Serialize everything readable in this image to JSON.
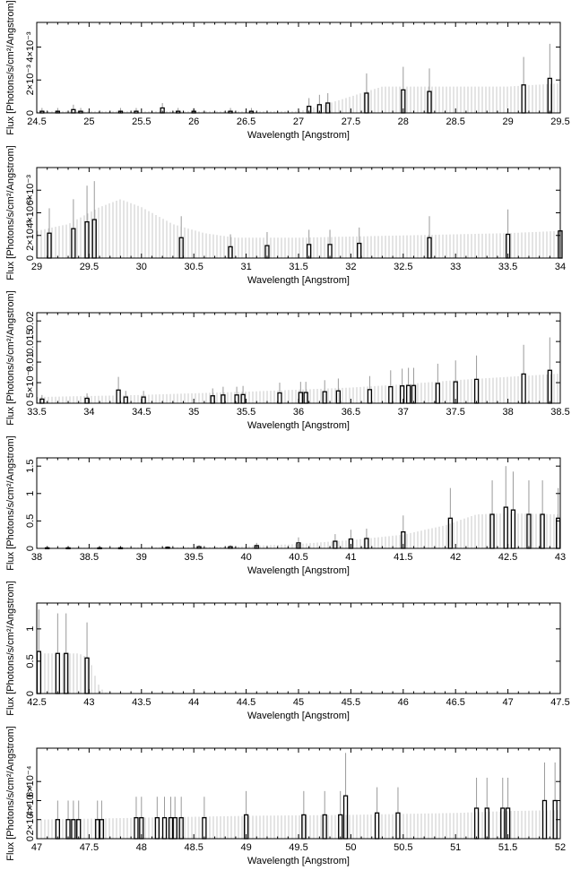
{
  "chart_data": [
    {
      "type": "bar",
      "xlabel": "Wavelength [Angstrom]",
      "ylabel": "Flux [Photons/s/cm²/Angstrom]",
      "xlim": [
        24.5,
        29.5
      ],
      "ylim": [
        0,
        0.0055
      ],
      "xticks": [
        "24.5",
        "25",
        "25.5",
        "26",
        "26.5",
        "27",
        "27.5",
        "28",
        "28.5",
        "29",
        "29.5"
      ],
      "yticks": [
        {
          "value": 0,
          "label": "0"
        },
        {
          "value": 0.002,
          "label": "2×10⁻³"
        },
        {
          "value": 0.004,
          "label": "4×10⁻³"
        }
      ],
      "model": {
        "x": [
          24.5,
          27.0,
          27.3,
          27.6,
          27.8,
          28.2,
          29.0,
          29.5
        ],
        "y": [
          0.0001,
          0.0001,
          0.0006,
          0.0012,
          0.0016,
          0.0016,
          0.0016,
          0.0018
        ]
      },
      "bins": [
        {
          "x": 24.55,
          "y": 0.0001,
          "err": 0.0002
        },
        {
          "x": 24.7,
          "y": 0.0001,
          "err": 0.0002
        },
        {
          "x": 24.85,
          "y": 0.0002,
          "err": 0.0003
        },
        {
          "x": 24.92,
          "y": 0.0001,
          "err": 0.0002
        },
        {
          "x": 25.3,
          "y": 0.0001,
          "err": 0.0002
        },
        {
          "x": 25.45,
          "y": 0.0001,
          "err": 0.0002
        },
        {
          "x": 25.7,
          "y": 0.0003,
          "err": 0.0003
        },
        {
          "x": 25.85,
          "y": 0.0001,
          "err": 0.0002
        },
        {
          "x": 26.0,
          "y": 0.0001,
          "err": 0.0002
        },
        {
          "x": 26.35,
          "y": 0.0001,
          "err": 0.0002
        },
        {
          "x": 26.55,
          "y": 0.0001,
          "err": 0.0002
        },
        {
          "x": 27.1,
          "y": 0.0004,
          "err": 0.0005
        },
        {
          "x": 27.2,
          "y": 0.0005,
          "err": 0.0006
        },
        {
          "x": 27.28,
          "y": 0.0006,
          "err": 0.0006
        },
        {
          "x": 27.65,
          "y": 0.0012,
          "err": 0.0012
        },
        {
          "x": 28.0,
          "y": 0.0014,
          "err": 0.0014
        },
        {
          "x": 28.25,
          "y": 0.0013,
          "err": 0.0014
        },
        {
          "x": 29.15,
          "y": 0.0017,
          "err": 0.0017
        },
        {
          "x": 29.4,
          "y": 0.0021,
          "err": 0.0021
        }
      ]
    },
    {
      "type": "bar",
      "xlabel": "Wavelength [Angstrom]",
      "ylabel": "Flux [Photons/s/cm²/Angstrom]",
      "xlim": [
        29,
        34
      ],
      "ylim": [
        0,
        0.008
      ],
      "xticks": [
        "29",
        "29.5",
        "30",
        "30.5",
        "31",
        "31.5",
        "32",
        "32.5",
        "33",
        "33.5",
        "34"
      ],
      "yticks": [
        {
          "value": 0,
          "label": "0"
        },
        {
          "value": 0.002,
          "label": "2×10⁻³"
        },
        {
          "value": 0.004,
          "label": "4×10⁻³"
        },
        {
          "value": 0.006,
          "label": "6×10⁻³"
        }
      ],
      "model": {
        "x": [
          29.0,
          29.3,
          29.6,
          29.8,
          30.0,
          30.3,
          30.6,
          30.9,
          31.5,
          32.0,
          32.5,
          33.0,
          33.5,
          34.0
        ],
        "y": [
          0.0024,
          0.003,
          0.0045,
          0.0052,
          0.0045,
          0.003,
          0.0022,
          0.0018,
          0.0018,
          0.0019,
          0.002,
          0.0021,
          0.0022,
          0.0024
        ]
      },
      "bins": [
        {
          "x": 29.12,
          "y": 0.0022,
          "err": 0.0022
        },
        {
          "x": 29.35,
          "y": 0.0026,
          "err": 0.0026
        },
        {
          "x": 29.48,
          "y": 0.0032,
          "err": 0.0032
        },
        {
          "x": 29.55,
          "y": 0.0034,
          "err": 0.0034
        },
        {
          "x": 30.38,
          "y": 0.0018,
          "err": 0.0019
        },
        {
          "x": 30.85,
          "y": 0.001,
          "err": 0.0011
        },
        {
          "x": 31.2,
          "y": 0.0011,
          "err": 0.0012
        },
        {
          "x": 31.6,
          "y": 0.0012,
          "err": 0.0013
        },
        {
          "x": 31.8,
          "y": 0.0012,
          "err": 0.0013
        },
        {
          "x": 32.08,
          "y": 0.0013,
          "err": 0.0014
        },
        {
          "x": 32.75,
          "y": 0.0018,
          "err": 0.0019
        },
        {
          "x": 33.5,
          "y": 0.0021,
          "err": 0.0022
        },
        {
          "x": 34.0,
          "y": 0.0024,
          "err": 0.0024
        }
      ]
    },
    {
      "type": "bar",
      "xlabel": "Wavelength [Angstrom]",
      "ylabel": "Flux [Photons/s/cm²/Angstrom]",
      "xlim": [
        33.5,
        38.5
      ],
      "ylim": [
        0,
        0.022
      ],
      "xticks": [
        "33.5",
        "34",
        "34.5",
        "35",
        "35.5",
        "36",
        "36.5",
        "37",
        "37.5",
        "38",
        "38.5"
      ],
      "yticks": [
        {
          "value": 0,
          "label": "0"
        },
        {
          "value": 0.005,
          "label": "5×10⁻³"
        },
        {
          "value": 0.01,
          "label": "0.01"
        },
        {
          "value": 0.015,
          "label": "0.015"
        },
        {
          "value": 0.02,
          "label": "0.02"
        }
      ],
      "model": {
        "x": [
          33.5,
          34.5,
          35.5,
          36.5,
          37.0,
          37.5,
          38.0,
          38.5
        ],
        "y": [
          0.0015,
          0.002,
          0.0028,
          0.0038,
          0.0046,
          0.0056,
          0.0064,
          0.0072
        ]
      },
      "bins": [
        {
          "x": 33.55,
          "y": 0.001,
          "err": 0.001
        },
        {
          "x": 33.98,
          "y": 0.0012,
          "err": 0.0012
        },
        {
          "x": 34.28,
          "y": 0.0032,
          "err": 0.0032
        },
        {
          "x": 34.35,
          "y": 0.0015,
          "err": 0.0015
        },
        {
          "x": 34.52,
          "y": 0.0015,
          "err": 0.0015
        },
        {
          "x": 35.18,
          "y": 0.0018,
          "err": 0.0018
        },
        {
          "x": 35.28,
          "y": 0.002,
          "err": 0.002
        },
        {
          "x": 35.41,
          "y": 0.002,
          "err": 0.002
        },
        {
          "x": 35.47,
          "y": 0.0021,
          "err": 0.0021
        },
        {
          "x": 35.82,
          "y": 0.0025,
          "err": 0.0025
        },
        {
          "x": 36.02,
          "y": 0.0026,
          "err": 0.0026
        },
        {
          "x": 36.07,
          "y": 0.0026,
          "err": 0.0026
        },
        {
          "x": 36.25,
          "y": 0.0028,
          "err": 0.0028
        },
        {
          "x": 36.38,
          "y": 0.003,
          "err": 0.003
        },
        {
          "x": 36.68,
          "y": 0.0033,
          "err": 0.0033
        },
        {
          "x": 36.88,
          "y": 0.004,
          "err": 0.004
        },
        {
          "x": 36.99,
          "y": 0.0042,
          "err": 0.0042
        },
        {
          "x": 37.05,
          "y": 0.0043,
          "err": 0.0043
        },
        {
          "x": 37.1,
          "y": 0.0043,
          "err": 0.0043
        },
        {
          "x": 37.33,
          "y": 0.0048,
          "err": 0.0048
        },
        {
          "x": 37.5,
          "y": 0.0052,
          "err": 0.0052
        },
        {
          "x": 37.7,
          "y": 0.0058,
          "err": 0.0058
        },
        {
          "x": 38.15,
          "y": 0.0071,
          "err": 0.0071
        },
        {
          "x": 38.4,
          "y": 0.008,
          "err": 0.008
        }
      ]
    },
    {
      "type": "bar",
      "xlabel": "Wavelength [Angstrom]",
      "ylabel": "Flux [Photons/s/cm²/Angstrom]",
      "xlim": [
        38,
        43
      ],
      "ylim": [
        0,
        1.65
      ],
      "xticks": [
        "38",
        "38.5",
        "39",
        "39.5",
        "40",
        "40.5",
        "41",
        "41.5",
        "42",
        "42.5",
        "43"
      ],
      "yticks": [
        {
          "value": 0,
          "label": "0"
        },
        {
          "value": 0.5,
          "label": "0.5"
        },
        {
          "value": 1,
          "label": "1"
        },
        {
          "value": 1.5,
          "label": "1.5"
        }
      ],
      "model": {
        "x": [
          38.0,
          39.5,
          40.0,
          40.5,
          41.0,
          41.5,
          41.9,
          42.2,
          42.5,
          43.0
        ],
        "y": [
          0.01,
          0.02,
          0.04,
          0.08,
          0.15,
          0.25,
          0.42,
          0.62,
          0.64,
          0.62
        ]
      },
      "bins": [
        {
          "x": 38.1,
          "y": 0.01,
          "err": 0.01
        },
        {
          "x": 38.3,
          "y": 0.01,
          "err": 0.01
        },
        {
          "x": 38.6,
          "y": 0.01,
          "err": 0.01
        },
        {
          "x": 38.8,
          "y": 0.01,
          "err": 0.01
        },
        {
          "x": 39.25,
          "y": 0.02,
          "err": 0.02
        },
        {
          "x": 39.55,
          "y": 0.03,
          "err": 0.03
        },
        {
          "x": 39.85,
          "y": 0.03,
          "err": 0.03
        },
        {
          "x": 40.1,
          "y": 0.05,
          "err": 0.05
        },
        {
          "x": 40.5,
          "y": 0.1,
          "err": 0.1
        },
        {
          "x": 40.85,
          "y": 0.13,
          "err": 0.13
        },
        {
          "x": 41.0,
          "y": 0.17,
          "err": 0.17
        },
        {
          "x": 41.15,
          "y": 0.18,
          "err": 0.18
        },
        {
          "x": 41.5,
          "y": 0.3,
          "err": 0.3
        },
        {
          "x": 41.95,
          "y": 0.55,
          "err": 0.55
        },
        {
          "x": 42.35,
          "y": 0.62,
          "err": 0.62
        },
        {
          "x": 42.48,
          "y": 0.75,
          "err": 0.75
        },
        {
          "x": 42.55,
          "y": 0.7,
          "err": 0.7
        },
        {
          "x": 42.7,
          "y": 0.62,
          "err": 0.62
        },
        {
          "x": 42.83,
          "y": 0.62,
          "err": 0.62
        },
        {
          "x": 42.98,
          "y": 0.55,
          "err": 0.55
        }
      ]
    },
    {
      "type": "bar",
      "xlabel": "Wavelength [Angstrom]",
      "ylabel": "Flux [Photons/s/cm²/Angstrom]",
      "xlim": [
        42.5,
        47.5
      ],
      "ylim": [
        0,
        1.4
      ],
      "xticks": [
        "42.5",
        "43",
        "43.5",
        "44",
        "44.5",
        "45",
        "45.5",
        "46",
        "46.5",
        "47",
        "47.5"
      ],
      "yticks": [
        {
          "value": 0,
          "label": "0"
        },
        {
          "value": 0.5,
          "label": "0.5"
        },
        {
          "value": 1,
          "label": "1"
        }
      ],
      "model": {
        "x": [
          42.5,
          42.9,
          43.0,
          43.05,
          43.1,
          43.15,
          43.2
        ],
        "y": [
          0.62,
          0.62,
          0.55,
          0.3,
          0.1,
          0.02,
          0.0
        ]
      },
      "bins": [
        {
          "x": 42.52,
          "y": 0.65,
          "err": 0.65
        },
        {
          "x": 42.7,
          "y": 0.62,
          "err": 0.62
        },
        {
          "x": 42.78,
          "y": 0.62,
          "err": 0.62
        },
        {
          "x": 42.98,
          "y": 0.55,
          "err": 0.55
        }
      ]
    },
    {
      "type": "bar",
      "xlabel": "Wavelength [Angstrom]",
      "ylabel": "Flux [Photons/s/cm²/Angstrom]",
      "xlim": [
        47,
        52
      ],
      "ylim": [
        0,
        0.00095
      ],
      "xticks": [
        "47",
        "47.5",
        "48",
        "48.5",
        "49",
        "49.5",
        "50",
        "50.5",
        "51",
        "51.5",
        "52"
      ],
      "yticks": [
        {
          "value": 0,
          "label": "0"
        },
        {
          "value": 0.0002,
          "label": "2×10⁻⁴"
        },
        {
          "value": 0.0004,
          "label": "4×10⁻⁴"
        },
        {
          "value": 0.0006,
          "label": "6×10⁻⁴"
        }
      ],
      "model": {
        "x": [
          47.0,
          48.0,
          49.0,
          50.0,
          51.0,
          51.5,
          52.0
        ],
        "y": [
          0.0002,
          0.00022,
          0.00024,
          0.00025,
          0.00027,
          0.00029,
          0.0003
        ]
      },
      "bins": [
        {
          "x": 47.2,
          "y": 0.0002,
          "err": 0.0002
        },
        {
          "x": 47.3,
          "y": 0.0002,
          "err": 0.0002
        },
        {
          "x": 47.35,
          "y": 0.0002,
          "err": 0.0002
        },
        {
          "x": 47.4,
          "y": 0.0002,
          "err": 0.0002
        },
        {
          "x": 47.58,
          "y": 0.0002,
          "err": 0.0002
        },
        {
          "x": 47.62,
          "y": 0.0002,
          "err": 0.0002
        },
        {
          "x": 47.95,
          "y": 0.00022,
          "err": 0.00022
        },
        {
          "x": 48.0,
          "y": 0.00022,
          "err": 0.00022
        },
        {
          "x": 48.15,
          "y": 0.00022,
          "err": 0.00022
        },
        {
          "x": 48.22,
          "y": 0.00022,
          "err": 0.00022
        },
        {
          "x": 48.28,
          "y": 0.00022,
          "err": 0.00022
        },
        {
          "x": 48.32,
          "y": 0.00022,
          "err": 0.00022
        },
        {
          "x": 48.38,
          "y": 0.00022,
          "err": 0.00022
        },
        {
          "x": 48.6,
          "y": 0.00022,
          "err": 0.00022
        },
        {
          "x": 49.0,
          "y": 0.00025,
          "err": 0.00025
        },
        {
          "x": 49.55,
          "y": 0.00025,
          "err": 0.00025
        },
        {
          "x": 49.75,
          "y": 0.00025,
          "err": 0.00025
        },
        {
          "x": 49.9,
          "y": 0.00025,
          "err": 0.00025
        },
        {
          "x": 49.95,
          "y": 0.00045,
          "err": 0.00045
        },
        {
          "x": 50.25,
          "y": 0.00027,
          "err": 0.00027
        },
        {
          "x": 50.45,
          "y": 0.00027,
          "err": 0.00027
        },
        {
          "x": 51.2,
          "y": 0.00032,
          "err": 0.00032
        },
        {
          "x": 51.3,
          "y": 0.00032,
          "err": 0.00032
        },
        {
          "x": 51.45,
          "y": 0.00032,
          "err": 0.00032
        },
        {
          "x": 51.5,
          "y": 0.00032,
          "err": 0.00032
        },
        {
          "x": 51.85,
          "y": 0.0004,
          "err": 0.0004
        },
        {
          "x": 51.95,
          "y": 0.0004,
          "err": 0.0004
        }
      ]
    }
  ]
}
